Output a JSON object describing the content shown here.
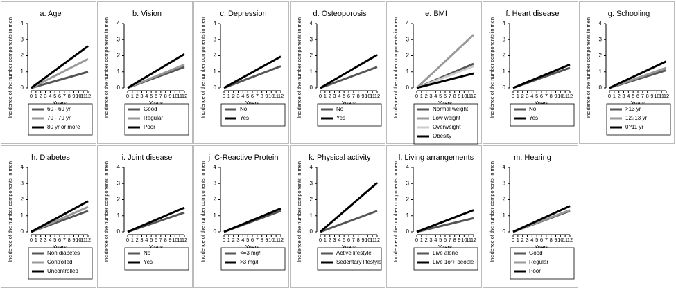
{
  "chart_data": [
    {
      "type": "line",
      "title": "a. Age",
      "xlabel": "Years",
      "ylabel": "Incidence of the number components in men",
      "x": [
        0,
        12
      ],
      "xlim": [
        0,
        12
      ],
      "xticks": [
        0,
        1,
        2,
        3,
        4,
        5,
        6,
        7,
        8,
        9,
        10,
        11,
        12
      ],
      "ylim": [
        0,
        4
      ],
      "yticks": [
        0,
        1,
        2,
        3,
        4
      ],
      "series": [
        {
          "name": "60 - 69 yr",
          "color": "#555555",
          "values": [
            0,
            1.0
          ]
        },
        {
          "name": "70 - 79 yr",
          "color": "#999999",
          "values": [
            0,
            1.8
          ]
        },
        {
          "name": "80 yr or more",
          "color": "#000000",
          "values": [
            0,
            2.6
          ]
        }
      ]
    },
    {
      "type": "line",
      "title": "b. Vision",
      "xlabel": "Years",
      "ylabel": "Incidence of the number components in men",
      "x": [
        0,
        12
      ],
      "xlim": [
        0,
        12
      ],
      "xticks": [
        0,
        1,
        2,
        3,
        4,
        5,
        6,
        7,
        8,
        9,
        10,
        11,
        12
      ],
      "ylim": [
        0,
        4
      ],
      "yticks": [
        0,
        1,
        2,
        3,
        4
      ],
      "series": [
        {
          "name": "Good",
          "color": "#555555",
          "values": [
            0,
            1.3
          ]
        },
        {
          "name": "Regular",
          "color": "#999999",
          "values": [
            0,
            1.45
          ]
        },
        {
          "name": "Poor",
          "color": "#000000",
          "values": [
            0,
            2.1
          ]
        }
      ]
    },
    {
      "type": "line",
      "title": "c. Depression",
      "xlabel": "Years",
      "ylabel": "Incidence of the number components in men",
      "x": [
        0,
        12
      ],
      "xlim": [
        0,
        12
      ],
      "xticks": [
        0,
        1,
        2,
        3,
        4,
        5,
        6,
        7,
        8,
        9,
        10,
        11,
        12
      ],
      "ylim": [
        0,
        4
      ],
      "yticks": [
        0,
        1,
        2,
        3,
        4
      ],
      "series": [
        {
          "name": "No",
          "color": "#555555",
          "values": [
            0,
            1.35
          ]
        },
        {
          "name": "Yes",
          "color": "#000000",
          "values": [
            0,
            1.95
          ]
        }
      ]
    },
    {
      "type": "line",
      "title": "d. Osteoporosis",
      "xlabel": "Years",
      "ylabel": "Incidence of the number components in men",
      "x": [
        0,
        12
      ],
      "xlim": [
        0,
        12
      ],
      "xticks": [
        0,
        1,
        2,
        3,
        4,
        5,
        6,
        7,
        8,
        9,
        10,
        11,
        12
      ],
      "ylim": [
        0,
        4
      ],
      "yticks": [
        0,
        1,
        2,
        3,
        4
      ],
      "series": [
        {
          "name": "No",
          "color": "#555555",
          "values": [
            0,
            1.3
          ]
        },
        {
          "name": "Yes",
          "color": "#000000",
          "values": [
            0,
            2.05
          ]
        }
      ]
    },
    {
      "type": "line",
      "title": "e. BMI",
      "xlabel": "Years",
      "ylabel": "Incidence of the number components in men",
      "x": [
        0,
        12
      ],
      "xlim": [
        0,
        12
      ],
      "xticks": [
        0,
        1,
        2,
        3,
        4,
        5,
        6,
        7,
        8,
        9,
        10,
        11,
        12
      ],
      "ylim": [
        0,
        4
      ],
      "yticks": [
        0,
        1,
        2,
        3,
        4
      ],
      "series": [
        {
          "name": "Normal weight",
          "color": "#555555",
          "values": [
            0,
            1.5
          ]
        },
        {
          "name": "Low weight",
          "color": "#999999",
          "values": [
            0,
            3.3
          ]
        },
        {
          "name": "Overweight",
          "color": "#cccccc",
          "values": [
            0,
            1.35
          ]
        },
        {
          "name": "Obesity",
          "color": "#000000",
          "values": [
            0,
            0.9
          ]
        }
      ]
    },
    {
      "type": "line",
      "title": "f. Heart disease",
      "xlabel": "Years",
      "ylabel": "Incidence of the number components in men",
      "x": [
        0,
        12
      ],
      "xlim": [
        0,
        12
      ],
      "xticks": [
        0,
        1,
        2,
        3,
        4,
        5,
        6,
        7,
        8,
        9,
        10,
        11,
        12
      ],
      "ylim": [
        0,
        4
      ],
      "yticks": [
        0,
        1,
        2,
        3,
        4
      ],
      "series": [
        {
          "name": "No",
          "color": "#555555",
          "values": [
            0,
            1.25
          ]
        },
        {
          "name": "Yes",
          "color": "#000000",
          "values": [
            0,
            1.45
          ]
        }
      ]
    },
    {
      "type": "line",
      "title": "g. Schooling",
      "xlabel": "Years",
      "ylabel": "Incidence of the number components in men",
      "x": [
        0,
        12
      ],
      "xlim": [
        0,
        12
      ],
      "xticks": [
        0,
        1,
        2,
        3,
        4,
        5,
        6,
        7,
        8,
        9,
        10,
        11,
        12
      ],
      "ylim": [
        0,
        4
      ],
      "yticks": [
        0,
        1,
        2,
        3,
        4
      ],
      "series": [
        {
          "name": ">13 yr",
          "color": "#555555",
          "values": [
            0,
            1.1
          ]
        },
        {
          "name": "12?13 yr",
          "color": "#999999",
          "values": [
            0,
            1.25
          ]
        },
        {
          "name": "0?11 yr",
          "color": "#000000",
          "values": [
            0,
            1.65
          ]
        }
      ]
    },
    {
      "type": "line",
      "title": "h. Diabetes",
      "xlabel": "Years",
      "ylabel": "Incidence of the number components in men",
      "x": [
        0,
        12
      ],
      "xlim": [
        0,
        12
      ],
      "xticks": [
        0,
        1,
        2,
        3,
        4,
        5,
        6,
        7,
        8,
        9,
        10,
        11,
        12
      ],
      "ylim": [
        0,
        4
      ],
      "yticks": [
        0,
        1,
        2,
        3,
        4
      ],
      "series": [
        {
          "name": "Non diabetes",
          "color": "#555555",
          "values": [
            0,
            1.3
          ]
        },
        {
          "name": "Controlled",
          "color": "#999999",
          "values": [
            0,
            1.55
          ]
        },
        {
          "name": "Uncontrolled",
          "color": "#000000",
          "values": [
            0,
            1.9
          ]
        }
      ]
    },
    {
      "type": "line",
      "title": "i. Joint disease",
      "xlabel": "Years",
      "ylabel": "Incidence of the number components in men",
      "x": [
        0,
        12
      ],
      "xlim": [
        0,
        12
      ],
      "xticks": [
        0,
        1,
        2,
        3,
        4,
        5,
        6,
        7,
        8,
        9,
        10,
        11,
        12
      ],
      "ylim": [
        0,
        4
      ],
      "yticks": [
        0,
        1,
        2,
        3,
        4
      ],
      "series": [
        {
          "name": "No",
          "color": "#555555",
          "values": [
            0,
            1.2
          ]
        },
        {
          "name": "Yes",
          "color": "#000000",
          "values": [
            0,
            1.5
          ]
        }
      ]
    },
    {
      "type": "line",
      "title": "j. C-Reactive Protein",
      "xlabel": "Years",
      "ylabel": "Incidence of the number components in men",
      "x": [
        0,
        12
      ],
      "xlim": [
        0,
        12
      ],
      "xticks": [
        0,
        1,
        2,
        3,
        4,
        5,
        6,
        7,
        8,
        9,
        10,
        11,
        12
      ],
      "ylim": [
        0,
        4
      ],
      "yticks": [
        0,
        1,
        2,
        3,
        4
      ],
      "series": [
        {
          "name": "<=3 mg/l",
          "color": "#555555",
          "values": [
            0,
            1.3
          ]
        },
        {
          "name": ">3 mg/l",
          "color": "#000000",
          "values": [
            0,
            1.45
          ]
        }
      ]
    },
    {
      "type": "line",
      "title": "k. Physical activity",
      "xlabel": "Years",
      "ylabel": "Incidence of the number components in men",
      "x": [
        0,
        12
      ],
      "xlim": [
        0,
        12
      ],
      "xticks": [
        0,
        1,
        2,
        3,
        4,
        5,
        6,
        7,
        8,
        9,
        10,
        11,
        12
      ],
      "ylim": [
        0,
        4
      ],
      "yticks": [
        0,
        1,
        2,
        3,
        4
      ],
      "series": [
        {
          "name": "Active lifestyle",
          "color": "#555555",
          "values": [
            0,
            1.3
          ]
        },
        {
          "name": "Sedentary lifestyle",
          "color": "#000000",
          "values": [
            0,
            3.05
          ]
        }
      ]
    },
    {
      "type": "line",
      "title": "l. Living arrangements",
      "xlabel": "Years",
      "ylabel": "Incidence of the number components in men",
      "x": [
        0,
        12
      ],
      "xlim": [
        0,
        12
      ],
      "xticks": [
        0,
        1,
        2,
        3,
        4,
        5,
        6,
        7,
        8,
        9,
        10,
        11,
        12
      ],
      "ylim": [
        0,
        4
      ],
      "yticks": [
        0,
        1,
        2,
        3,
        4
      ],
      "series": [
        {
          "name": "Live alone",
          "color": "#555555",
          "values": [
            0,
            0.85
          ]
        },
        {
          "name": "Live 1or+ people",
          "color": "#000000",
          "values": [
            0,
            1.35
          ]
        }
      ]
    },
    {
      "type": "line",
      "title": "m. Hearing",
      "xlabel": "Years",
      "ylabel": "Incidence of the number components in men",
      "x": [
        0,
        12
      ],
      "xlim": [
        0,
        12
      ],
      "xticks": [
        0,
        1,
        2,
        3,
        4,
        5,
        6,
        7,
        8,
        9,
        10,
        11,
        12
      ],
      "ylim": [
        0,
        4
      ],
      "yticks": [
        0,
        1,
        2,
        3,
        4
      ],
      "series": [
        {
          "name": "Good",
          "color": "#555555",
          "values": [
            0,
            1.3
          ]
        },
        {
          "name": "Regular",
          "color": "#999999",
          "values": [
            0,
            1.35
          ]
        },
        {
          "name": "Poor",
          "color": "#000000",
          "values": [
            0,
            1.6
          ]
        }
      ]
    }
  ]
}
